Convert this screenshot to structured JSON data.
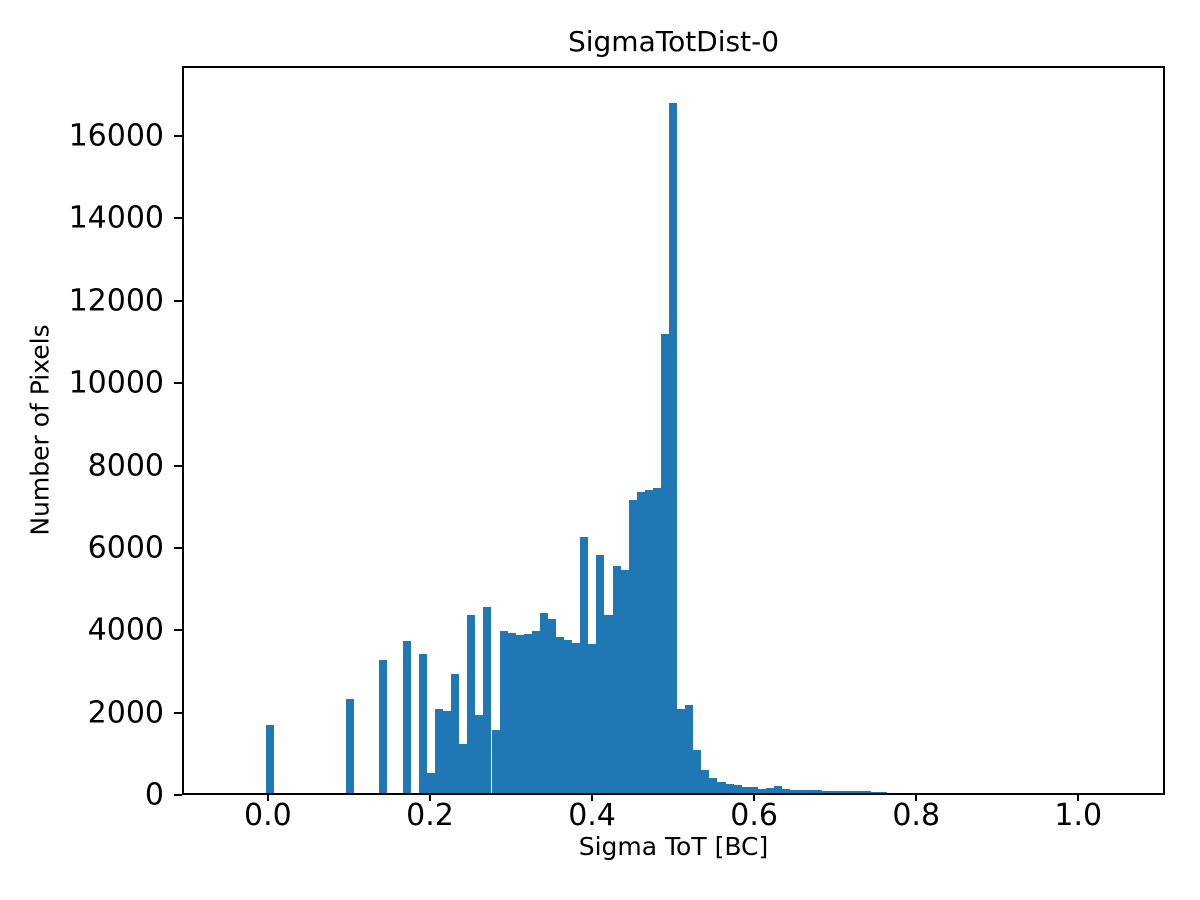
{
  "title": "SigmaTotDist-0",
  "chart_data": {
    "type": "bar",
    "subtype": "histogram",
    "title": "SigmaTotDist-0",
    "xlabel": "Sigma ToT [BC]",
    "ylabel": "Number of Pixels",
    "bar_color": "#1f77b4",
    "background_color": "#ffffff",
    "grid": false,
    "legend": false,
    "bin_width": 0.01,
    "xlim": [
      -0.106,
      1.107
    ],
    "ylim": [
      0,
      17700
    ],
    "xticks": [
      {
        "value": 0.0,
        "label": "0.0"
      },
      {
        "value": 0.2,
        "label": "0.2"
      },
      {
        "value": 0.4,
        "label": "0.4"
      },
      {
        "value": 0.6,
        "label": "0.6"
      },
      {
        "value": 0.8,
        "label": "0.8"
      },
      {
        "value": 1.0,
        "label": "1.0"
      }
    ],
    "yticks": [
      {
        "value": 0,
        "label": "0"
      },
      {
        "value": 2000,
        "label": "2000"
      },
      {
        "value": 4000,
        "label": "4000"
      },
      {
        "value": 6000,
        "label": "6000"
      },
      {
        "value": 8000,
        "label": "8000"
      },
      {
        "value": 10000,
        "label": "10000"
      },
      {
        "value": 12000,
        "label": "12000"
      },
      {
        "value": 14000,
        "label": "14000"
      },
      {
        "value": 16000,
        "label": "16000"
      }
    ],
    "bins": [
      {
        "x": 0.0,
        "count": 1650
      },
      {
        "x": 0.1,
        "count": 2300
      },
      {
        "x": 0.14,
        "count": 3250
      },
      {
        "x": 0.17,
        "count": 3700
      },
      {
        "x": 0.19,
        "count": 3400
      },
      {
        "x": 0.2,
        "count": 500
      },
      {
        "x": 0.21,
        "count": 2050
      },
      {
        "x": 0.22,
        "count": 2000
      },
      {
        "x": 0.23,
        "count": 2900
      },
      {
        "x": 0.24,
        "count": 1200
      },
      {
        "x": 0.25,
        "count": 4350
      },
      {
        "x": 0.26,
        "count": 1900
      },
      {
        "x": 0.27,
        "count": 4550
      },
      {
        "x": 0.28,
        "count": 1550
      },
      {
        "x": 0.29,
        "count": 3950
      },
      {
        "x": 0.3,
        "count": 3900
      },
      {
        "x": 0.31,
        "count": 3850
      },
      {
        "x": 0.32,
        "count": 3880
      },
      {
        "x": 0.33,
        "count": 3950
      },
      {
        "x": 0.34,
        "count": 4400
      },
      {
        "x": 0.35,
        "count": 4250
      },
      {
        "x": 0.36,
        "count": 3800
      },
      {
        "x": 0.37,
        "count": 3730
      },
      {
        "x": 0.38,
        "count": 3660
      },
      {
        "x": 0.39,
        "count": 6250
      },
      {
        "x": 0.4,
        "count": 3650
      },
      {
        "x": 0.41,
        "count": 5800
      },
      {
        "x": 0.42,
        "count": 4350
      },
      {
        "x": 0.43,
        "count": 5550
      },
      {
        "x": 0.44,
        "count": 5450
      },
      {
        "x": 0.45,
        "count": 7150
      },
      {
        "x": 0.46,
        "count": 7340
      },
      {
        "x": 0.47,
        "count": 7400
      },
      {
        "x": 0.48,
        "count": 7450
      },
      {
        "x": 0.49,
        "count": 11200
      },
      {
        "x": 0.5,
        "count": 16850
      },
      {
        "x": 0.51,
        "count": 2050
      },
      {
        "x": 0.52,
        "count": 2150
      },
      {
        "x": 0.53,
        "count": 1050
      },
      {
        "x": 0.54,
        "count": 560
      },
      {
        "x": 0.55,
        "count": 370
      },
      {
        "x": 0.56,
        "count": 270
      },
      {
        "x": 0.57,
        "count": 220
      },
      {
        "x": 0.58,
        "count": 195
      },
      {
        "x": 0.59,
        "count": 150
      },
      {
        "x": 0.6,
        "count": 145
      },
      {
        "x": 0.61,
        "count": 100
      },
      {
        "x": 0.62,
        "count": 120
      },
      {
        "x": 0.63,
        "count": 170
      },
      {
        "x": 0.64,
        "count": 90
      },
      {
        "x": 0.65,
        "count": 85
      },
      {
        "x": 0.66,
        "count": 80
      },
      {
        "x": 0.67,
        "count": 75
      },
      {
        "x": 0.68,
        "count": 70
      },
      {
        "x": 0.69,
        "count": 60
      },
      {
        "x": 0.7,
        "count": 55
      },
      {
        "x": 0.71,
        "count": 50
      },
      {
        "x": 0.72,
        "count": 45
      },
      {
        "x": 0.73,
        "count": 40
      },
      {
        "x": 0.74,
        "count": 40
      },
      {
        "x": 0.75,
        "count": 35
      },
      {
        "x": 0.76,
        "count": 30
      }
    ]
  }
}
